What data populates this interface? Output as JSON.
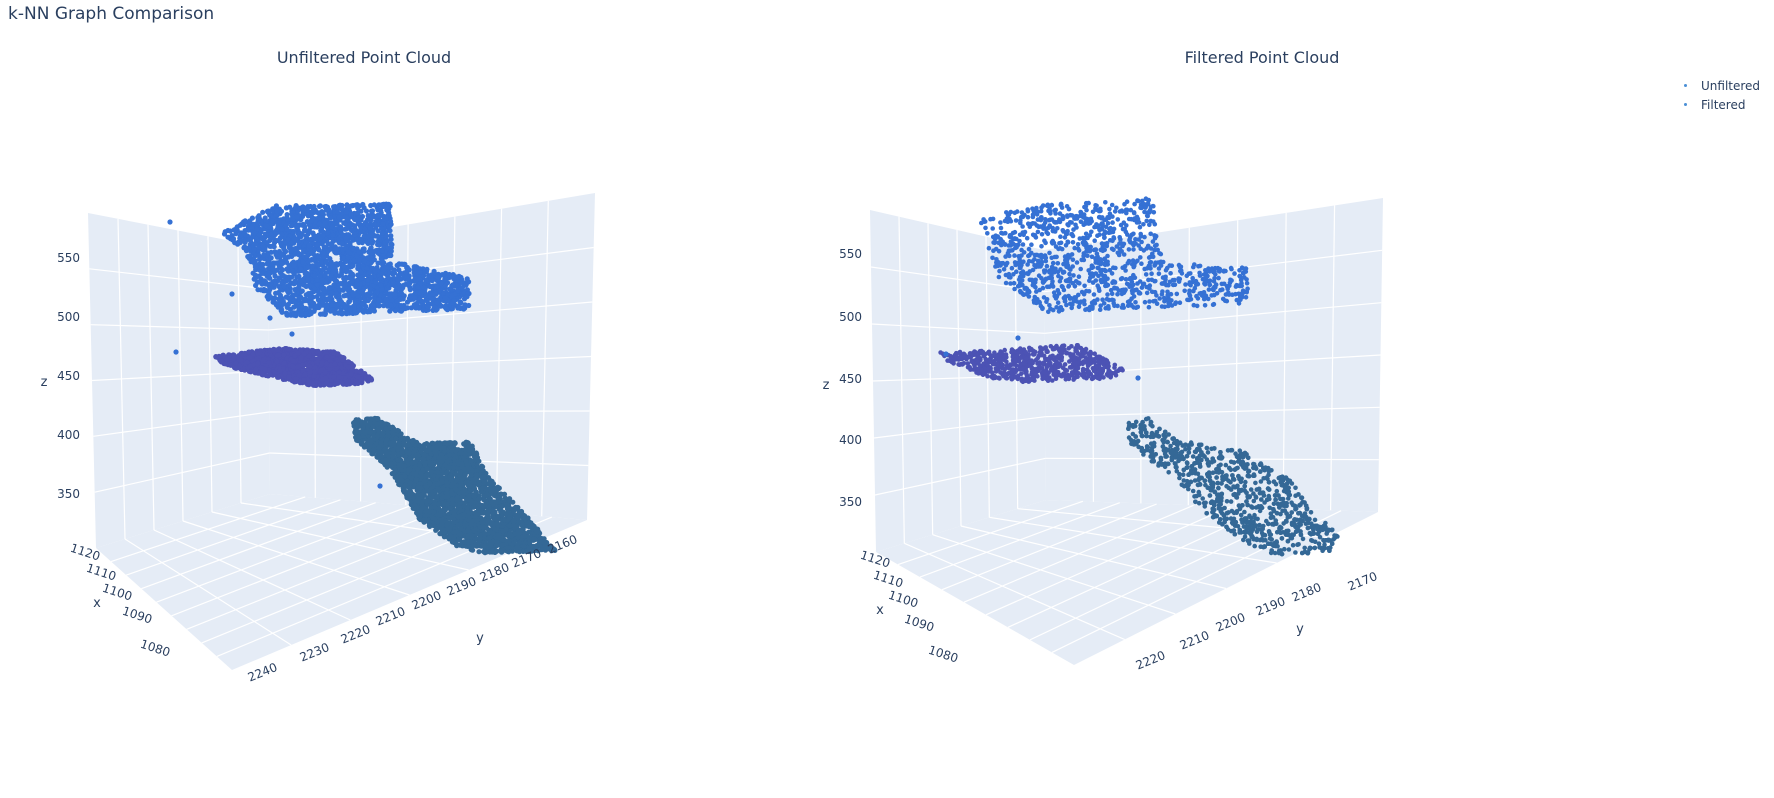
{
  "figure_title": "k-NN Graph Comparison",
  "legend": [
    {
      "name": "Unfiltered",
      "color": "#4a8fd6"
    },
    {
      "name": "Filtered",
      "color": "#4a8fd6"
    }
  ],
  "chart_data": [
    {
      "type": "scatter3d",
      "title": "Unfiltered Point Cloud",
      "xlabel": "x",
      "ylabel": "y",
      "zlabel": "z",
      "x_ticks": [
        "1120",
        "1110",
        "1100",
        "1090",
        "1080"
      ],
      "y_ticks": [
        "2240",
        "2230",
        "2220",
        "2210",
        "2200",
        "2190",
        "2180",
        "2170",
        "2160"
      ],
      "z_ticks": [
        "550",
        "500",
        "450",
        "400",
        "350"
      ],
      "xlim": [
        1075,
        1122
      ],
      "ylim": [
        2158,
        2245
      ],
      "zlim": [
        320,
        580
      ],
      "colors": {
        "top": "#3571d4",
        "mid": "#4c53b4",
        "bottom": "#346896"
      },
      "clusters": [
        {
          "name": "top",
          "z_range": [
            510,
            585
          ],
          "density": "high"
        },
        {
          "name": "mid",
          "z_range": [
            450,
            478
          ],
          "density": "high"
        },
        {
          "name": "bottom",
          "z_range": [
            325,
            415
          ],
          "density": "high"
        }
      ]
    },
    {
      "type": "scatter3d",
      "title": "Filtered Point Cloud",
      "xlabel": "x",
      "ylabel": "y",
      "zlabel": "z",
      "x_ticks": [
        "1120",
        "1110",
        "1100",
        "1090",
        "1080"
      ],
      "y_ticks": [
        "2220",
        "2210",
        "2200",
        "2190",
        "2180",
        "2170"
      ],
      "z_ticks": [
        "550",
        "500",
        "450",
        "400",
        "350"
      ],
      "xlim": [
        1075,
        1122
      ],
      "ylim": [
        2165,
        2228
      ],
      "zlim": [
        320,
        580
      ],
      "colors": {
        "top": "#3571d4",
        "mid": "#4c53b4",
        "bottom": "#346896"
      },
      "clusters": [
        {
          "name": "top",
          "z_range": [
            510,
            585
          ],
          "density": "sparse"
        },
        {
          "name": "mid",
          "z_range": [
            450,
            478
          ],
          "density": "sparse"
        },
        {
          "name": "bottom",
          "z_range": [
            325,
            415
          ],
          "density": "sparse"
        }
      ]
    }
  ]
}
